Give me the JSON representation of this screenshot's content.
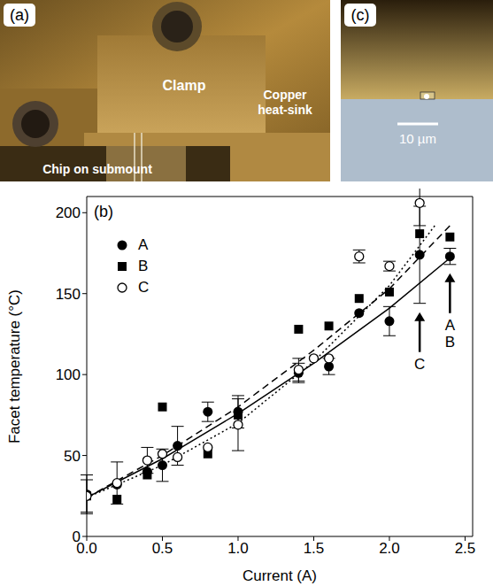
{
  "chart_data": {
    "type": "scatter",
    "panel": "(b)",
    "x_label": "Current (A)",
    "y_label": "Facet temperature (°C)",
    "xlim": [
      0,
      2.55
    ],
    "xticks": [
      {
        "value": 0,
        "label": "0.0"
      },
      {
        "value": 0.5,
        "label": "0.5"
      },
      {
        "value": 1,
        "label": "1.0"
      },
      {
        "value": 1.5,
        "label": "1.5"
      },
      {
        "value": 2,
        "label": "2.0"
      },
      {
        "value": 2.5,
        "label": "2.5"
      }
    ],
    "ylim": [
      0,
      210
    ],
    "yticks": [
      0,
      50,
      100,
      150,
      200
    ],
    "grid": false,
    "legend": "upper left",
    "series": [
      {
        "name": "A",
        "color": "#000000",
        "marker": "filled_circle",
        "x": [
          0,
          0.2,
          0.4,
          0.5,
          0.6,
          0.8,
          1.0,
          1.4,
          1.6,
          1.8,
          2.0,
          2.2,
          2.4
        ],
        "values": [
          26,
          32,
          40,
          44,
          56,
          77,
          77,
          101,
          105,
          138,
          133,
          174,
          173
        ],
        "errors": [
          12,
          null,
          null,
          10,
          12,
          6,
          10,
          6,
          5,
          null,
          9,
          30,
          5
        ]
      },
      {
        "name": "B",
        "color": "#000000",
        "marker": "filled_square",
        "x": [
          0,
          0.2,
          0.4,
          0.5,
          0.8,
          1.0,
          1.4,
          1.6,
          1.8,
          2.0,
          2.2,
          2.4
        ],
        "values": [
          25,
          23,
          38,
          80,
          51,
          75,
          128,
          130,
          147,
          151,
          187,
          185
        ],
        "errors": [
          null,
          null,
          null,
          null,
          null,
          null,
          null,
          null,
          null,
          null,
          null,
          null
        ]
      },
      {
        "name": "C",
        "color": "#000000",
        "marker": "open_circle",
        "x": [
          0,
          0.2,
          0.4,
          0.5,
          0.6,
          0.8,
          1.0,
          1.4,
          1.5,
          1.6,
          1.8,
          2.0,
          2.2
        ],
        "values": [
          25,
          33,
          47,
          51,
          49,
          55,
          69,
          103,
          110,
          110,
          173,
          167,
          206
        ],
        "errors": [
          10,
          13,
          8,
          null,
          null,
          null,
          16,
          7,
          null,
          null,
          4,
          3,
          14
        ]
      }
    ],
    "fits": [
      {
        "series": "A",
        "line_style": "solid",
        "x": [
          0,
          0.5,
          1.0,
          1.5,
          2.0,
          2.4
        ],
        "values": [
          24,
          48,
          76,
          107,
          141,
          172
        ]
      },
      {
        "series": "B",
        "line_style": "dashed",
        "x": [
          0,
          0.5,
          1.0,
          1.5,
          2.0,
          2.4
        ],
        "values": [
          24,
          50,
          80,
          115,
          153,
          192
        ]
      },
      {
        "series": "C",
        "line_style": "dotted",
        "x": [
          0,
          0.5,
          1.0,
          1.5,
          2.0,
          2.3
        ],
        "values": [
          24,
          44,
          70,
          108,
          155,
          192
        ]
      }
    ],
    "annotations": [
      {
        "lines": [
          "A",
          "B"
        ],
        "x": 2.4
      },
      {
        "lines": [
          "C"
        ],
        "x": 2.2
      }
    ]
  },
  "photos": [
    {
      "panel": "(a)",
      "labels": [
        "Clamp",
        "Copper heat-sink",
        "Chip on submount"
      ]
    },
    {
      "panel": "(c)",
      "scale_bar": "10 µm"
    }
  ]
}
